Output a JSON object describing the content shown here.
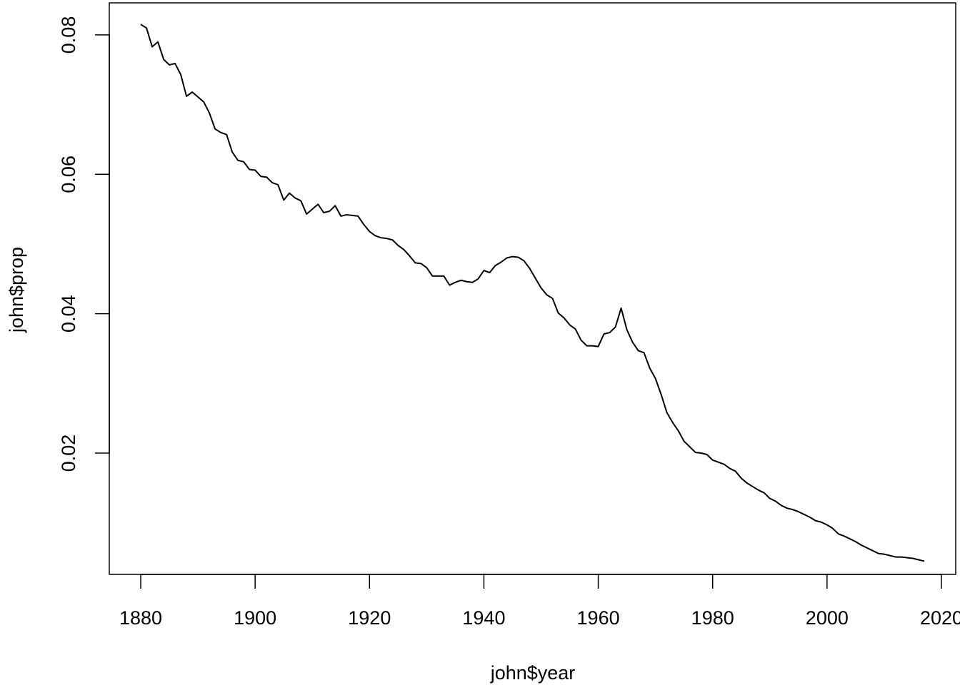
{
  "chart_data": {
    "type": "line",
    "xlabel": "john$year",
    "ylabel": "john$prop",
    "xlim": [
      1874.5,
      2022.5
    ],
    "ylim": [
      0.0026,
      0.0846
    ],
    "xticks": [
      1880,
      1900,
      1920,
      1940,
      1960,
      1980,
      2000,
      2020
    ],
    "xtick_labels": [
      "1880",
      "1900",
      "1920",
      "1940",
      "1960",
      "1980",
      "2000",
      "2020"
    ],
    "yticks": [
      0.02,
      0.04,
      0.06,
      0.08
    ],
    "ytick_labels": [
      "0.02",
      "0.04",
      "0.06",
      "0.08"
    ],
    "grid": false,
    "line_color": "#000000",
    "series": [
      {
        "x": [
          1880,
          1881,
          1882,
          1883,
          1884,
          1885,
          1886,
          1887,
          1888,
          1889,
          1890,
          1891,
          1892,
          1893,
          1894,
          1895,
          1896,
          1897,
          1898,
          1899,
          1900,
          1901,
          1902,
          1903,
          1904,
          1905,
          1906,
          1907,
          1908,
          1909,
          1910,
          1911,
          1912,
          1913,
          1914,
          1915,
          1916,
          1917,
          1918,
          1919,
          1920,
          1921,
          1922,
          1923,
          1924,
          1925,
          1926,
          1927,
          1928,
          1929,
          1930,
          1931,
          1932,
          1933,
          1934,
          1935,
          1936,
          1937,
          1938,
          1939,
          1940,
          1941,
          1942,
          1943,
          1944,
          1945,
          1946,
          1947,
          1948,
          1949,
          1950,
          1951,
          1952,
          1953,
          1954,
          1955,
          1956,
          1957,
          1958,
          1959,
          1960,
          1961,
          1962,
          1963,
          1964,
          1965,
          1966,
          1967,
          1968,
          1969,
          1970,
          1971,
          1972,
          1973,
          1974,
          1975,
          1976,
          1977,
          1978,
          1979,
          1980,
          1981,
          1982,
          1983,
          1984,
          1985,
          1986,
          1987,
          1988,
          1989,
          1990,
          1991,
          1992,
          1993,
          1994,
          1995,
          1996,
          1997,
          1998,
          1999,
          2000,
          2001,
          2002,
          2003,
          2004,
          2005,
          2006,
          2007,
          2008,
          2009,
          2010,
          2011,
          2012,
          2013,
          2014,
          2015,
          2016,
          2017
        ],
        "values": [
          0.0815,
          0.081,
          0.0783,
          0.079,
          0.0765,
          0.0757,
          0.0759,
          0.0743,
          0.0712,
          0.0718,
          0.0711,
          0.0704,
          0.0688,
          0.0665,
          0.066,
          0.0657,
          0.0632,
          0.062,
          0.0618,
          0.0607,
          0.0606,
          0.0597,
          0.0596,
          0.0588,
          0.0585,
          0.0563,
          0.0573,
          0.0566,
          0.0562,
          0.0543,
          0.055,
          0.0557,
          0.0545,
          0.0547,
          0.0555,
          0.054,
          0.0542,
          0.0541,
          0.054,
          0.0528,
          0.0518,
          0.0512,
          0.0509,
          0.0508,
          0.0506,
          0.0498,
          0.0492,
          0.0483,
          0.0473,
          0.0472,
          0.0466,
          0.0454,
          0.0454,
          0.0454,
          0.0441,
          0.0445,
          0.0448,
          0.0446,
          0.0445,
          0.045,
          0.0462,
          0.0459,
          0.0469,
          0.0474,
          0.048,
          0.0482,
          0.0481,
          0.0476,
          0.0465,
          0.0451,
          0.0437,
          0.0427,
          0.0422,
          0.0401,
          0.0394,
          0.0384,
          0.0378,
          0.0362,
          0.0354,
          0.0354,
          0.0353,
          0.0371,
          0.0373,
          0.0381,
          0.0408,
          0.0377,
          0.0359,
          0.0347,
          0.0344,
          0.0322,
          0.0307,
          0.0284,
          0.0258,
          0.0244,
          0.0232,
          0.0217,
          0.0209,
          0.0201,
          0.02,
          0.0198,
          0.019,
          0.0187,
          0.0184,
          0.0178,
          0.0174,
          0.0164,
          0.0157,
          0.0152,
          0.0147,
          0.0143,
          0.0135,
          0.0131,
          0.0125,
          0.0121,
          0.0119,
          0.0116,
          0.0112,
          0.0108,
          0.0103,
          0.0101,
          0.0097,
          0.0092,
          0.0084,
          0.0081,
          0.0077,
          0.0073,
          0.0068,
          0.0064,
          0.006,
          0.0056,
          0.0055,
          0.0053,
          0.0051,
          0.0051,
          0.005,
          0.0049,
          0.0047,
          0.0045
        ]
      }
    ]
  }
}
